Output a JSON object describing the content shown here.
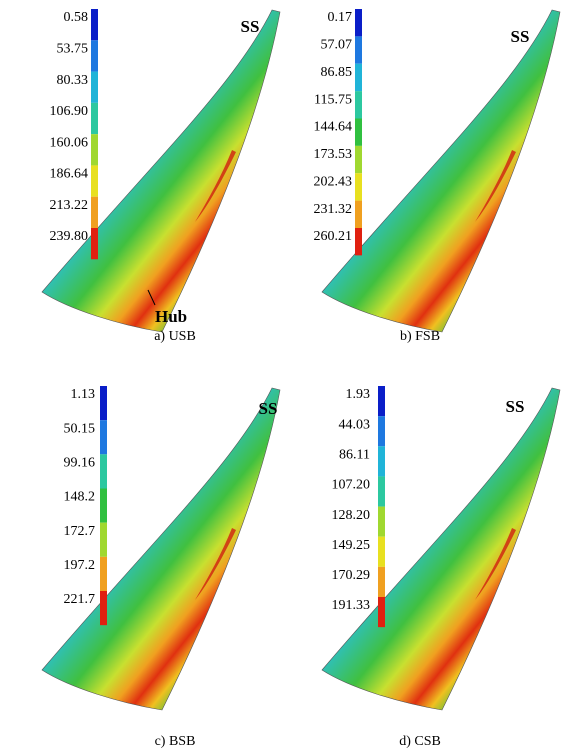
{
  "panels": [
    {
      "caption": "a) USB",
      "side_label": "SS",
      "hub_label": "Hub",
      "legend": [
        "0.58",
        "53.75",
        "80.33",
        "106.90",
        "160.06",
        "186.64",
        "213.22",
        "239.80"
      ]
    },
    {
      "caption": "b) FSB",
      "side_label": "SS",
      "legend": [
        "0.17",
        "57.07",
        "86.85",
        "115.75",
        "144.64",
        "173.53",
        "202.43",
        "231.32",
        "260.21"
      ]
    },
    {
      "caption": "c) BSB",
      "side_label": "SS",
      "legend": [
        "1.13",
        "50.15",
        "99.16",
        "148.2",
        "172.7",
        "197.2",
        "221.7"
      ]
    },
    {
      "caption": "d) CSB",
      "side_label": "SS",
      "legend": [
        "1.93",
        "44.03",
        "86.11",
        "107.20",
        "128.20",
        "149.25",
        "170.29",
        "191.33"
      ]
    }
  ]
}
